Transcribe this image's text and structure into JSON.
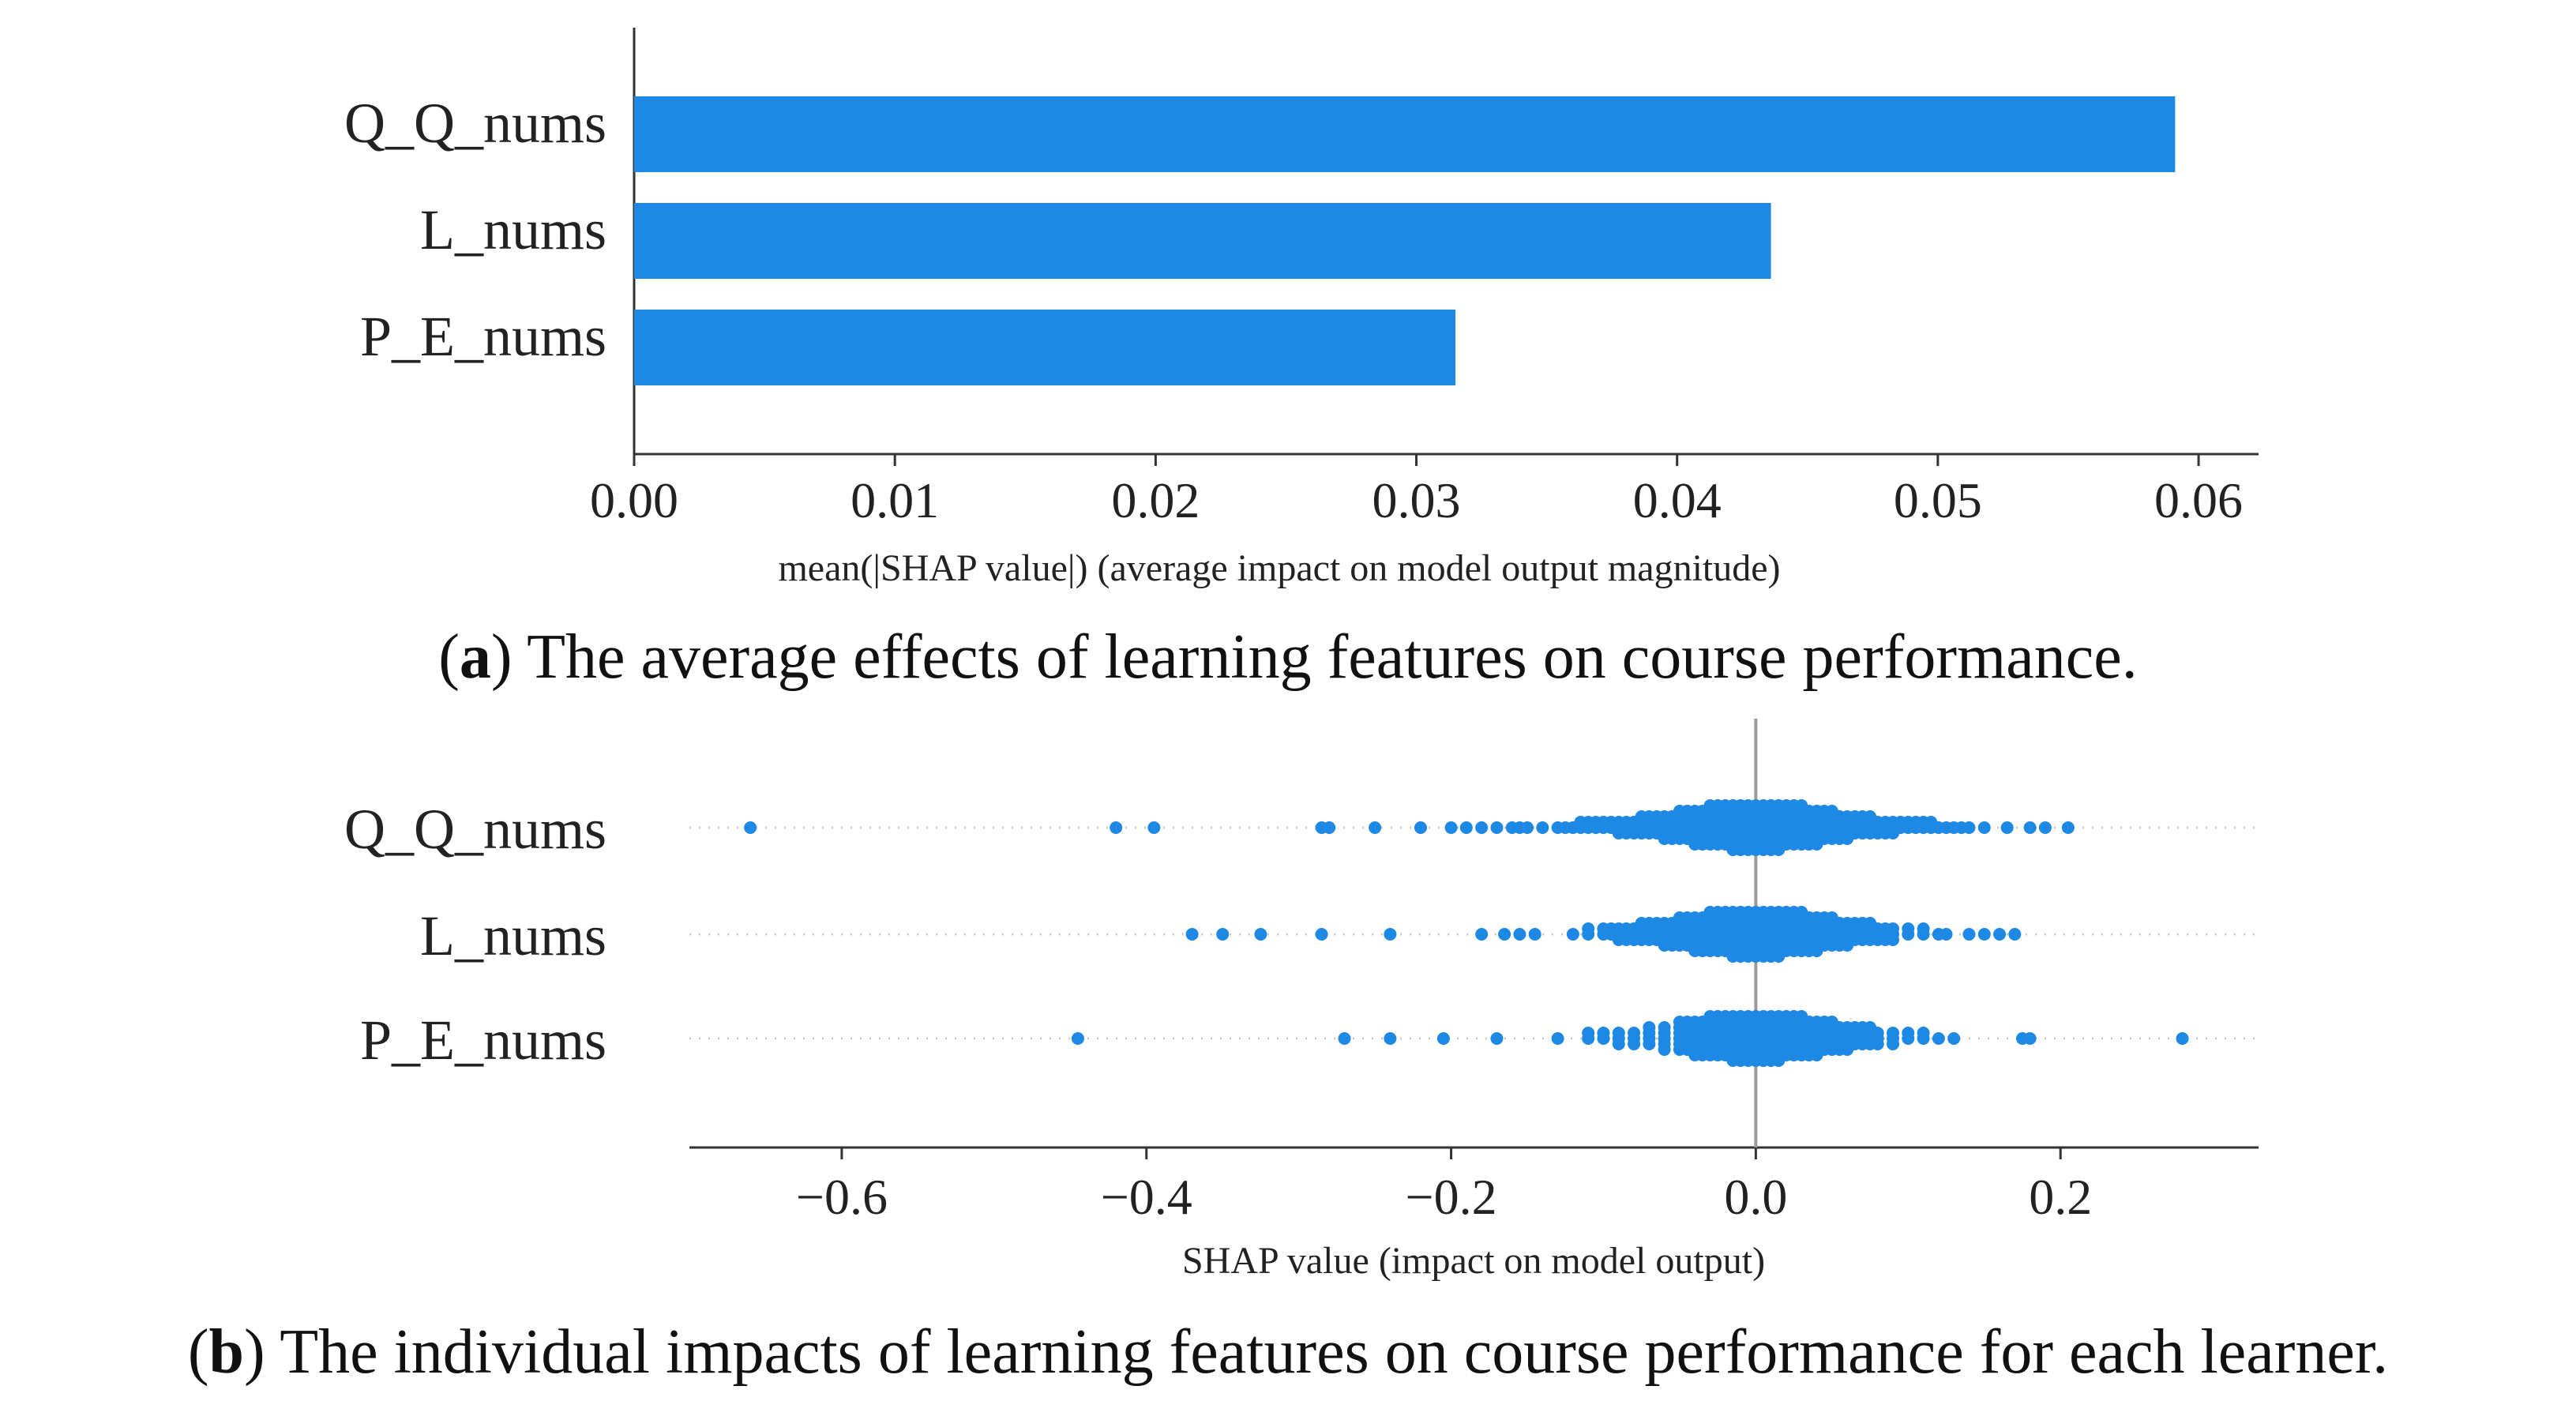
{
  "chart_data": [
    {
      "type": "bar",
      "orientation": "horizontal",
      "categories": [
        "Q_Q_nums",
        "L_nums",
        "P_E_nums"
      ],
      "values": [
        0.0591,
        0.0436,
        0.0315
      ],
      "xlim": [
        0.0,
        0.0623
      ],
      "xticks": [
        0.0,
        0.01,
        0.02,
        0.03,
        0.04,
        0.05,
        0.06
      ],
      "xtick_labels": [
        "0.00",
        "0.01",
        "0.02",
        "0.03",
        "0.04",
        "0.05",
        "0.06"
      ],
      "xlabel": "mean(|SHAP value|) (average impact on model output magnitude)",
      "color": "#1e88e5",
      "caption": {
        "prefix_open": "(",
        "letter": "a",
        "text": ") The average effects of learning features on course performance."
      }
    },
    {
      "type": "scatter",
      "subtype": "beeswarm",
      "categories": [
        "Q_Q_nums",
        "L_nums",
        "P_E_nums"
      ],
      "xlim": [
        -0.7,
        0.33
      ],
      "xticks": [
        -0.6,
        -0.4,
        -0.2,
        0.0,
        0.2
      ],
      "xtick_labels": [
        "−0.6",
        "−0.4",
        "−0.2",
        "0.0",
        "0.2"
      ],
      "xlabel": "SHAP value (impact on model output)",
      "color": "#1e88e5",
      "series": [
        {
          "name": "Q_Q_nums",
          "values": [
            -0.66,
            -0.42,
            -0.395,
            -0.285,
            -0.28,
            -0.25,
            -0.22,
            -0.2,
            -0.19,
            -0.18,
            -0.17,
            -0.16,
            -0.155,
            -0.15,
            -0.14,
            -0.13,
            -0.125,
            -0.12,
            -0.115,
            -0.11,
            -0.105,
            -0.1,
            -0.095,
            -0.09,
            -0.085,
            -0.08,
            -0.075,
            -0.07,
            -0.065,
            -0.06,
            -0.055,
            -0.05,
            -0.045,
            -0.04,
            -0.035,
            -0.03,
            -0.025,
            -0.02,
            -0.015,
            -0.01,
            -0.005,
            0.0,
            0.005,
            0.01,
            0.015,
            0.02,
            0.025,
            0.03,
            0.035,
            0.04,
            0.045,
            0.05,
            0.055,
            0.06,
            0.065,
            0.07,
            0.075,
            0.08,
            0.085,
            0.09,
            0.095,
            0.1,
            0.105,
            0.11,
            0.115,
            0.12,
            0.125,
            0.13,
            0.135,
            0.14,
            0.15,
            0.165,
            0.18,
            0.19,
            0.205
          ]
        },
        {
          "name": "L_nums",
          "values": [
            -0.37,
            -0.35,
            -0.325,
            -0.285,
            -0.24,
            -0.18,
            -0.165,
            -0.155,
            -0.145,
            -0.12,
            -0.11,
            -0.1,
            -0.095,
            -0.09,
            -0.085,
            -0.08,
            -0.075,
            -0.07,
            -0.065,
            -0.06,
            -0.055,
            -0.05,
            -0.045,
            -0.04,
            -0.035,
            -0.03,
            -0.025,
            -0.02,
            -0.015,
            -0.01,
            -0.005,
            0.0,
            0.005,
            0.01,
            0.015,
            0.02,
            0.025,
            0.03,
            0.035,
            0.04,
            0.045,
            0.05,
            0.055,
            0.06,
            0.065,
            0.07,
            0.075,
            0.08,
            0.085,
            0.09,
            0.1,
            0.11,
            0.12,
            0.125,
            0.14,
            0.15,
            0.16,
            0.17
          ]
        },
        {
          "name": "P_E_nums",
          "values": [
            -0.445,
            -0.27,
            -0.24,
            -0.205,
            -0.17,
            -0.13,
            -0.11,
            -0.1,
            -0.09,
            -0.08,
            -0.07,
            -0.06,
            -0.05,
            -0.045,
            -0.04,
            -0.035,
            -0.03,
            -0.025,
            -0.02,
            -0.015,
            -0.01,
            -0.005,
            0.0,
            0.005,
            0.01,
            0.015,
            0.02,
            0.025,
            0.03,
            0.035,
            0.04,
            0.045,
            0.05,
            0.055,
            0.06,
            0.065,
            0.07,
            0.075,
            0.08,
            0.09,
            0.1,
            0.11,
            0.12,
            0.13,
            0.175,
            0.18,
            0.28
          ]
        }
      ],
      "caption": {
        "prefix_open": "(",
        "letter": "b",
        "text": ") The individual impacts of learning features on course performance for each learner."
      }
    }
  ]
}
